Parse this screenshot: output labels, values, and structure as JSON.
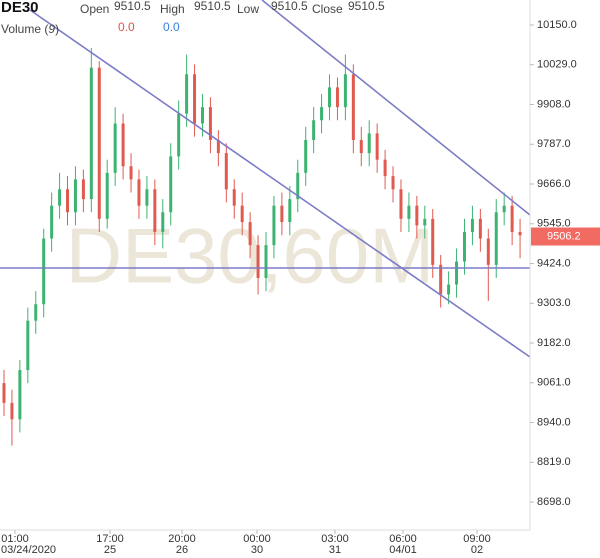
{
  "chart_data": {
    "type": "candlestick",
    "symbol": "DE30",
    "watermark": "DE30,60M",
    "ohlc_legend": [
      {
        "name": "Open",
        "value": 9510.5
      },
      {
        "name": "High",
        "value": 9510.5
      },
      {
        "name": "Low",
        "value": 9510.5
      },
      {
        "name": "Close",
        "value": 9510.5
      }
    ],
    "indicator": {
      "name": "Volume",
      "period": 9,
      "values": [
        {
          "value": 0,
          "label": "0.0"
        },
        {
          "value": 0,
          "label": "0.0"
        }
      ]
    },
    "up_color": "#3cb371",
    "down_color": "#e05a4f",
    "open": [
      9060,
      9000,
      8950,
      9100,
      9250,
      9300,
      9500,
      9600,
      9650,
      9580,
      9680,
      9620,
      10020,
      9560,
      9700,
      9850,
      9720,
      9680,
      9600,
      9650,
      9520,
      9580,
      9750,
      9880,
      10000,
      9850,
      9900,
      9800,
      9760,
      9650,
      9600,
      9550,
      9480,
      9380,
      9480,
      9600,
      9550,
      9620,
      9700,
      9800,
      9860,
      9900,
      9960,
      9900,
      10000,
      9800,
      9760,
      9820,
      9740,
      9690,
      9650,
      9560,
      9600,
      9540,
      9560,
      9420,
      9330,
      9360,
      9430,
      9520,
      9560,
      9500,
      9420,
      9580,
      9600,
      9520
    ],
    "high": [
      9100,
      9040,
      9130,
      9290,
      9340,
      9530,
      9640,
      9700,
      9690,
      9720,
      9710,
      10080,
      10040,
      9740,
      9900,
      9880,
      9760,
      9710,
      9690,
      9680,
      9620,
      9790,
      9920,
      10060,
      10030,
      9940,
      9930,
      9830,
      9790,
      9680,
      9640,
      9580,
      9510,
      9520,
      9630,
      9640,
      9660,
      9740,
      9840,
      9900,
      9940,
      10000,
      9990,
      10060,
      10030,
      9840,
      9860,
      9850,
      9770,
      9720,
      9680,
      9640,
      9630,
      9600,
      9590,
      9450,
      9400,
      9470,
      9560,
      9600,
      9590,
      9530,
      9620,
      9640,
      9630,
      9560
    ],
    "low": [
      8960,
      8870,
      8910,
      9060,
      9210,
      9260,
      9460,
      9560,
      9540,
      9540,
      9580,
      9580,
      9520,
      9530,
      9660,
      9680,
      9640,
      9560,
      9560,
      9480,
      9470,
      9540,
      9710,
      9840,
      9810,
      9810,
      9760,
      9720,
      9610,
      9560,
      9510,
      9440,
      9330,
      9340,
      9440,
      9510,
      9510,
      9580,
      9660,
      9760,
      9820,
      9860,
      9860,
      9860,
      9760,
      9720,
      9720,
      9700,
      9650,
      9610,
      9520,
      9520,
      9500,
      9500,
      9380,
      9290,
      9300,
      9320,
      9390,
      9480,
      9460,
      9310,
      9380,
      9540,
      9480,
      9440
    ],
    "close": [
      9000,
      8950,
      9100,
      9250,
      9300,
      9500,
      9600,
      9650,
      9580,
      9680,
      9620,
      10020,
      9560,
      9700,
      9850,
      9720,
      9680,
      9600,
      9650,
      9520,
      9580,
      9750,
      9880,
      10000,
      9850,
      9900,
      9800,
      9760,
      9650,
      9600,
      9550,
      9480,
      9380,
      9480,
      9600,
      9550,
      9620,
      9700,
      9800,
      9860,
      9900,
      9960,
      9900,
      10000,
      9800,
      9760,
      9820,
      9740,
      9690,
      9650,
      9560,
      9600,
      9540,
      9560,
      9420,
      9330,
      9360,
      9430,
      9520,
      9560,
      9500,
      9420,
      9580,
      9600,
      9520,
      9510
    ],
    "x_labels": [
      {
        "time": "01:00",
        "date": "03/24/2020"
      },
      {
        "time": "17:00",
        "date": "25"
      },
      {
        "time": "20:00",
        "date": "26"
      },
      {
        "time": "00:00",
        "date": "30"
      },
      {
        "time": "03:00",
        "date": "31"
      },
      {
        "time": "06:00",
        "date": "04/01"
      },
      {
        "time": "09:00",
        "date": "02"
      }
    ],
    "ylim": [
      8613,
      10226
    ],
    "yticks": [
      {
        "value": 10150,
        "label": "10150.0"
      },
      {
        "value": 10029,
        "label": "10029.0"
      },
      {
        "value": 9908,
        "label": "9908.0"
      },
      {
        "value": 9787,
        "label": "9787.0"
      },
      {
        "value": 9666,
        "label": "9666.0"
      },
      {
        "value": 9545,
        "label": "9545.0"
      },
      {
        "value": 9424,
        "label": "9424.0"
      },
      {
        "value": 9303,
        "label": "9303.0"
      },
      {
        "value": 9182,
        "label": "9182.0"
      },
      {
        "value": 9061,
        "label": "9061.0"
      },
      {
        "value": 8940,
        "label": "8940.0"
      },
      {
        "value": 8819,
        "label": "8819.0"
      },
      {
        "value": 8698,
        "label": "8698.0"
      }
    ],
    "last_price": 9506.2,
    "last_price_color": "#f26b63"
  }
}
